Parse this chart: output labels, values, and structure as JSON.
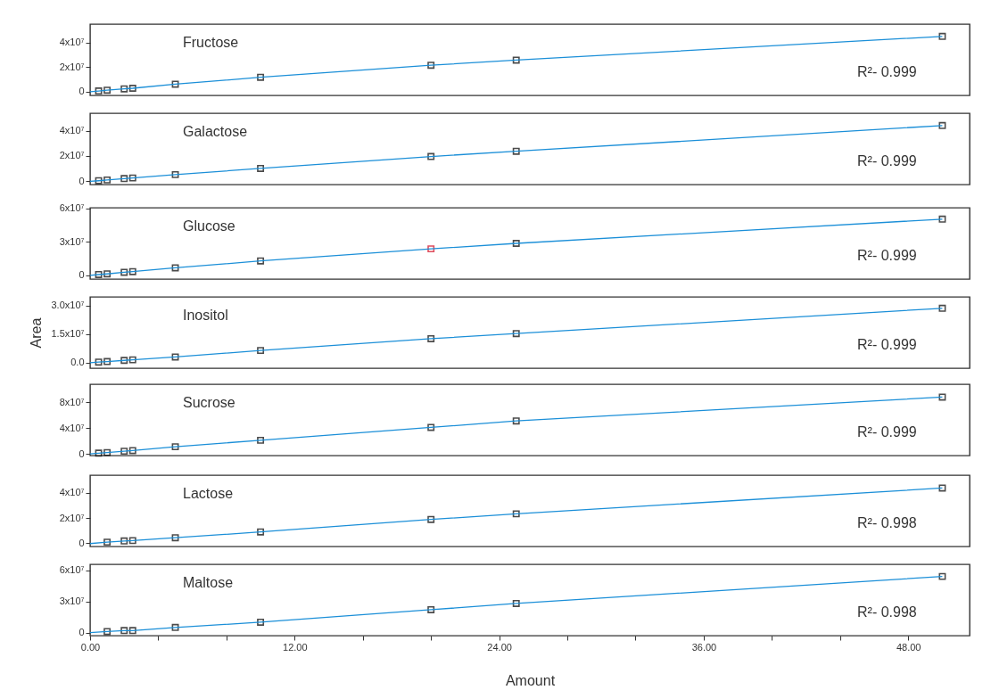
{
  "chart_data": [
    {
      "type": "scatter",
      "title": "Fructose",
      "annotations": [
        "R²- 0.999"
      ],
      "tick_labels": "y",
      "xlim": [
        0,
        51.6
      ],
      "ylim": [
        -3000000,
        55000000
      ],
      "yticks": [
        {
          "value": 0,
          "label": "0"
        },
        {
          "value": 20000000,
          "label": "2x10⁷"
        },
        {
          "value": 40000000,
          "label": "4x10⁷"
        }
      ],
      "series": [
        {
          "marker": "square",
          "color": "#000000",
          "x": [
            0.5,
            1,
            2,
            2.5,
            5,
            10,
            20,
            25,
            50
          ],
          "values": [
            600000,
            1200000,
            2300000,
            2800000,
            6100000,
            11700000,
            21500000,
            25700000,
            45000000
          ]
        },
        {
          "type": "line",
          "color": "#1b8fd8",
          "x": [
            0,
            0.5,
            1,
            2,
            2.5,
            5,
            10,
            20,
            25,
            50
          ],
          "values": [
            0,
            600000,
            1200000,
            2300000,
            2800000,
            6100000,
            11700000,
            21500000,
            25700000,
            45000000
          ]
        }
      ]
    },
    {
      "type": "scatter",
      "title": "Galactose",
      "annotations": [
        "R²- 0.999"
      ],
      "tick_labels": "y",
      "xlim": [
        0,
        51.6
      ],
      "ylim": [
        -2500000,
        53700000
      ],
      "yticks": [
        {
          "value": 0,
          "label": "0"
        },
        {
          "value": 20000000,
          "label": "2x10⁷"
        },
        {
          "value": 40000000,
          "label": "4x10⁷"
        }
      ],
      "series": [
        {
          "marker": "square",
          "color": "#000000",
          "x": [
            0.5,
            1,
            2,
            2.5,
            5,
            10,
            20,
            25,
            50
          ],
          "values": [
            500000,
            1100000,
            2200000,
            2700000,
            5300000,
            10200000,
            19600000,
            23700000,
            44000000
          ]
        },
        {
          "type": "line",
          "color": "#1b8fd8",
          "x": [
            0,
            0.5,
            1,
            2,
            2.5,
            5,
            10,
            20,
            25,
            50
          ],
          "values": [
            0,
            500000,
            1100000,
            2200000,
            2700000,
            5300000,
            10200000,
            19600000,
            23700000,
            44000000
          ]
        }
      ]
    },
    {
      "type": "scatter",
      "title": "Glucose",
      "annotations": [
        "R²- 0.999"
      ],
      "tick_labels": "y",
      "xlim": [
        0,
        51.6
      ],
      "ylim": [
        -3300000,
        60500000
      ],
      "yticks": [
        {
          "value": 0,
          "label": "0"
        },
        {
          "value": 30000000,
          "label": "3x10⁷"
        },
        {
          "value": 60000000,
          "label": "6x10⁷"
        }
      ],
      "series": [
        {
          "marker": "square",
          "color": "#000000",
          "colors": [
            "#000000",
            "#000000",
            "#000000",
            "#000000",
            "#000000",
            "#000000",
            "#d0021b",
            "#000000",
            "#000000"
          ],
          "x": [
            0.5,
            1,
            2,
            2.5,
            5,
            10,
            20,
            25,
            50
          ],
          "values": [
            700000,
            1300000,
            2700000,
            3300000,
            6700000,
            12900000,
            23700000,
            28600000,
            50300000
          ]
        },
        {
          "type": "line",
          "color": "#1b8fd8",
          "x": [
            0,
            0.5,
            1,
            2,
            2.5,
            5,
            10,
            20,
            25,
            50
          ],
          "values": [
            0,
            700000,
            1300000,
            2700000,
            3300000,
            6700000,
            12900000,
            23700000,
            28600000,
            50300000
          ]
        }
      ]
    },
    {
      "type": "scatter",
      "title": "Inositol",
      "annotations": [
        "R²- 0.999"
      ],
      "tick_labels": "y",
      "ylabel": "Area",
      "xlim": [
        0,
        51.6
      ],
      "ylim": [
        -2900000,
        34600000
      ],
      "yticks": [
        {
          "value": 0,
          "label": "0.0"
        },
        {
          "value": 15000000,
          "label": "1.5x10⁷"
        },
        {
          "value": 30000000,
          "label": "3.0x10⁷"
        }
      ],
      "series": [
        {
          "marker": "square",
          "color": "#000000",
          "x": [
            0.5,
            1,
            2,
            2.5,
            5,
            10,
            20,
            25,
            50
          ],
          "values": [
            300000,
            600000,
            1200000,
            1500000,
            3000000,
            6400000,
            12600000,
            15300000,
            28600000
          ]
        },
        {
          "type": "line",
          "color": "#1b8fd8",
          "x": [
            0,
            0.5,
            1,
            2,
            2.5,
            5,
            10,
            20,
            25,
            50
          ],
          "values": [
            0,
            300000,
            600000,
            1200000,
            1500000,
            3000000,
            6400000,
            12600000,
            15300000,
            28600000
          ]
        }
      ]
    },
    {
      "type": "scatter",
      "title": "Sucrose",
      "annotations": [
        "R²- 0.999"
      ],
      "tick_labels": "y",
      "xlim": [
        0,
        51.6
      ],
      "ylim": [
        -2700000,
        108000000
      ],
      "yticks": [
        {
          "value": 0,
          "label": "0"
        },
        {
          "value": 40000000,
          "label": "4x10⁷"
        },
        {
          "value": 80000000,
          "label": "8x10⁷"
        }
      ],
      "series": [
        {
          "marker": "square",
          "color": "#000000",
          "x": [
            0.5,
            1,
            2,
            2.5,
            5,
            10,
            20,
            25,
            50
          ],
          "values": [
            1000000,
            2000000,
            4000000,
            5000000,
            11000000,
            21000000,
            41000000,
            51000000,
            88000000
          ]
        },
        {
          "type": "line",
          "color": "#1b8fd8",
          "x": [
            0,
            0.5,
            1,
            2,
            2.5,
            5,
            10,
            20,
            25,
            50
          ],
          "values": [
            0,
            1000000,
            2000000,
            4000000,
            5000000,
            11000000,
            21000000,
            41000000,
            51000000,
            88000000
          ]
        }
      ]
    },
    {
      "type": "scatter",
      "title": "Lactose",
      "annotations": [
        "R²- 0.998"
      ],
      "tick_labels": "y",
      "xlim": [
        0,
        51.6
      ],
      "ylim": [
        -2800000,
        54200000
      ],
      "yticks": [
        {
          "value": 0,
          "label": "0"
        },
        {
          "value": 20000000,
          "label": "2x10⁷"
        },
        {
          "value": 40000000,
          "label": "4x10⁷"
        }
      ],
      "series": [
        {
          "marker": "square",
          "color": "#000000",
          "x": [
            1,
            2,
            2.5,
            5,
            10,
            20,
            25,
            50
          ],
          "values": [
            700000,
            1600000,
            1900000,
            4200000,
            8800000,
            18800000,
            23300000,
            43900000
          ]
        },
        {
          "type": "line",
          "color": "#1b8fd8",
          "x": [
            0,
            1,
            2,
            2.5,
            5,
            10,
            20,
            25,
            50
          ],
          "values": [
            -500000,
            700000,
            1600000,
            1900000,
            4200000,
            8800000,
            18800000,
            23300000,
            43900000
          ]
        }
      ]
    },
    {
      "type": "scatter",
      "title": "Maltose",
      "annotations": [
        "R²- 0.998"
      ],
      "xlabel": "Amount",
      "xlim": [
        0,
        51.6
      ],
      "xticks": [
        {
          "value": 0,
          "label": "0.00"
        },
        {
          "value": 4,
          "label": null
        },
        {
          "value": 8,
          "label": null
        },
        {
          "value": 12,
          "label": "12.00"
        },
        {
          "value": 16,
          "label": null
        },
        {
          "value": 20,
          "label": null
        },
        {
          "value": 24,
          "label": "24.00"
        },
        {
          "value": 28,
          "label": null
        },
        {
          "value": 32,
          "label": null
        },
        {
          "value": 36,
          "label": "36.00"
        },
        {
          "value": 40,
          "label": null
        },
        {
          "value": 44,
          "label": null
        },
        {
          "value": 48,
          "label": "48.00"
        }
      ],
      "ylim": [
        -2900000,
        65700000
      ],
      "yticks": [
        {
          "value": 0,
          "label": "0"
        },
        {
          "value": 30000000,
          "label": "3x10⁷"
        },
        {
          "value": 60000000,
          "label": "6x10⁷"
        }
      ],
      "series": [
        {
          "marker": "square",
          "color": "#000000",
          "x": [
            1,
            2,
            2.5,
            5,
            10,
            20,
            25,
            50
          ],
          "values": [
            1000000,
            2000000,
            2000000,
            5000000,
            10000000,
            22000000,
            28000000,
            54000000
          ]
        },
        {
          "type": "line",
          "color": "#1b8fd8",
          "x": [
            0,
            1,
            2,
            2.5,
            5,
            10,
            20,
            25,
            50
          ],
          "values": [
            0,
            1000000,
            2000000,
            2000000,
            5000000,
            10000000,
            22000000,
            28000000,
            54000000
          ]
        }
      ]
    }
  ]
}
